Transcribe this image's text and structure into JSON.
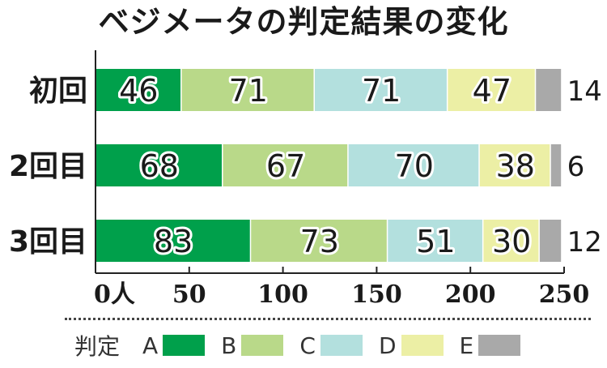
{
  "chart_data": {
    "type": "bar",
    "orientation": "horizontal",
    "stacked": true,
    "title": "ベジメータの判定結果の変化",
    "categories": [
      "初回",
      "2回目",
      "3回目"
    ],
    "series": [
      {
        "name": "A",
        "color": "#00a04b",
        "values": [
          46,
          68,
          83
        ]
      },
      {
        "name": "B",
        "color": "#b9d989",
        "values": [
          71,
          67,
          73
        ]
      },
      {
        "name": "C",
        "color": "#b3e0de",
        "values": [
          71,
          70,
          51
        ]
      },
      {
        "name": "D",
        "color": "#ecefa5",
        "values": [
          47,
          38,
          30
        ]
      },
      {
        "name": "E",
        "color": "#a9a9a9",
        "values": [
          14,
          6,
          12
        ]
      }
    ],
    "xlim": [
      0,
      250
    ],
    "ticks": [
      "0人",
      "50",
      "100",
      "150",
      "200",
      "250"
    ],
    "tick_values": [
      0,
      50,
      100,
      150,
      200,
      250
    ],
    "legend_title": "判定",
    "legend_position": "bottom"
  }
}
